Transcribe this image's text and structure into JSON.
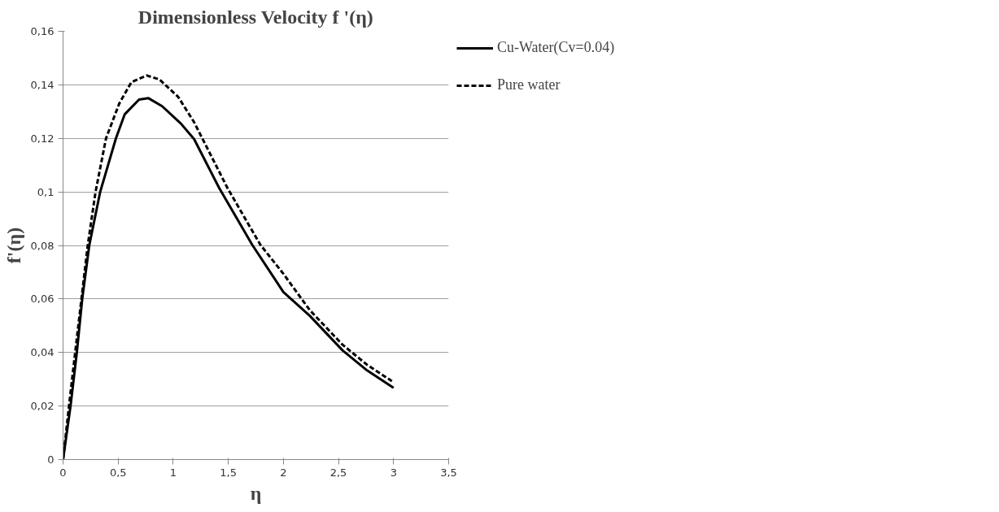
{
  "chart_data": {
    "type": "line",
    "title": "Dimensionless Velocity f '(η)",
    "xlabel": "η",
    "ylabel": "f'(η)",
    "xlim": [
      0,
      3.5
    ],
    "ylim": [
      0,
      0.16
    ],
    "xticks": [
      0,
      {
        "value": 0.5,
        "label": "0,5"
      },
      1,
      {
        "value": 1.5,
        "label": "1,5"
      },
      2,
      {
        "value": 2.5,
        "label": "2,5"
      },
      3,
      {
        "value": 3.5,
        "label": "3,5"
      }
    ],
    "yticks": [
      0,
      {
        "value": 0.02,
        "label": "0,02"
      },
      {
        "value": 0.04,
        "label": "0,04"
      },
      {
        "value": 0.06,
        "label": "0,06"
      },
      {
        "value": 0.08,
        "label": "0,08"
      },
      {
        "value": 0.1,
        "label": "0,1"
      },
      {
        "value": 0.12,
        "label": "0,12"
      },
      {
        "value": 0.14,
        "label": "0,14"
      },
      {
        "value": 0.16,
        "label": "0,16"
      }
    ],
    "grid": "y",
    "legend": "right",
    "series": [
      {
        "name": "Cu-Water(Cv=0.04)",
        "color": "#000000",
        "line_style": "solid",
        "x": [
          0,
          0.068,
          0.125,
          0.174,
          0.238,
          0.337,
          0.48,
          0.56,
          0.69,
          0.776,
          0.9,
          1.07,
          1.19,
          1.418,
          1.716,
          2.0,
          2.24,
          2.537,
          2.76,
          3.0
        ],
        "values": [
          0,
          0.02,
          0.04,
          0.06,
          0.08,
          0.1,
          0.12,
          0.129,
          0.1345,
          0.135,
          0.132,
          0.1255,
          0.1197,
          0.1014,
          0.0803,
          0.0626,
          0.0537,
          0.0408,
          0.0333,
          0.0268
        ]
      },
      {
        "name": "Pure water",
        "color": "#000000",
        "line_style": "dashed",
        "x": [
          0,
          0.054,
          0.11,
          0.167,
          0.224,
          0.295,
          0.39,
          0.51,
          0.62,
          0.76,
          0.875,
          1.045,
          1.19,
          1.493,
          1.79,
          2.0,
          2.24,
          2.537,
          2.76,
          2.985
        ],
        "values": [
          0,
          0.02,
          0.04,
          0.06,
          0.08,
          0.1,
          0.12,
          0.133,
          0.141,
          0.1435,
          0.142,
          0.1355,
          0.126,
          0.1014,
          0.0803,
          0.0694,
          0.0558,
          0.0429,
          0.0354,
          0.0293
        ]
      }
    ]
  }
}
